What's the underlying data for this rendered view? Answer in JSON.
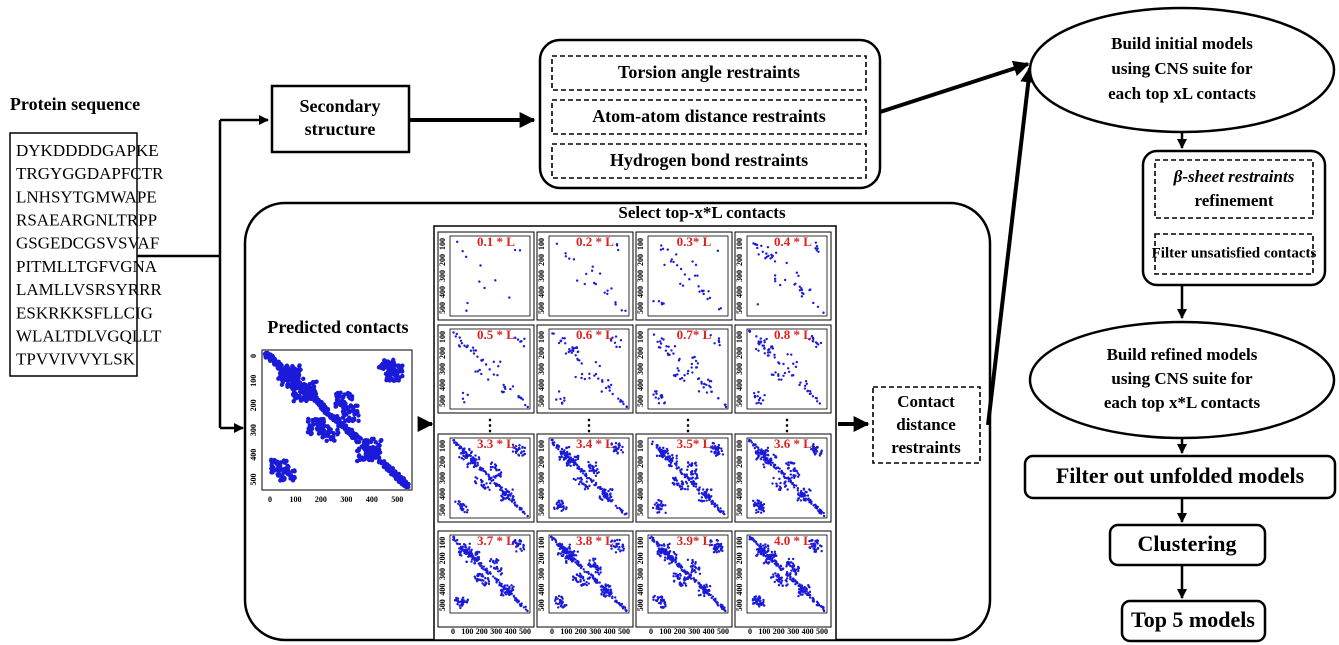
{
  "protein_sequence": {
    "label": "Protein sequence",
    "lines": [
      "DYKDDDDGAPKE",
      "TRGYGGDAPFCTR",
      "LNHSYTGMWAPE",
      "RSAEARGNLTRPP",
      "GSGEDCGSVSVAF",
      "PITMLLTGFVGNA",
      "LAMLLVSRSYRRR",
      "ESKRKKSFLLCIG",
      "WLALTDLVGQLLT",
      "TPVVIVVYLSK"
    ]
  },
  "secondary_structure": [
    "Secondary",
    "structure"
  ],
  "restraints": [
    "Torsion angle restraints",
    "Atom-atom distance restraints",
    "Hydrogen bond restraints"
  ],
  "contacts_panel": {
    "title": "Select top-x*L contacts",
    "predicted_label": "Predicted contacts",
    "axis_ticks": [
      "0",
      "100",
      "200",
      "300",
      "400",
      "500"
    ],
    "thresholds": [
      "0.1 * L",
      "0.2 * L",
      "0.3* L",
      "0.4 * L",
      "0.5 * L",
      "0.6 * L",
      "0.7* L",
      "0.8 * L",
      "3.3 * L",
      "3.4 * L",
      "3.5* L",
      "3.6 * L",
      "3.7 * L",
      "3.8 * L",
      "3.9* L",
      "4.0 * L"
    ],
    "ellipsis": "⋮"
  },
  "contact_restraints": [
    "Contact",
    "distance",
    "restraints"
  ],
  "pipeline": {
    "initial_models": [
      "Build initial models",
      "using CNS suite for",
      "each top xL contacts"
    ],
    "beta_sheet": [
      "β-sheet restraints",
      "refinement"
    ],
    "filter_contacts": "Filter unsatisfied contacts",
    "refined_models": [
      "Build refined models",
      "using CNS suite for",
      "each top x*L contacts"
    ],
    "filter_unfolded": "Filter out unfolded models",
    "clustering": "Clustering",
    "top_models": "Top 5 models"
  }
}
